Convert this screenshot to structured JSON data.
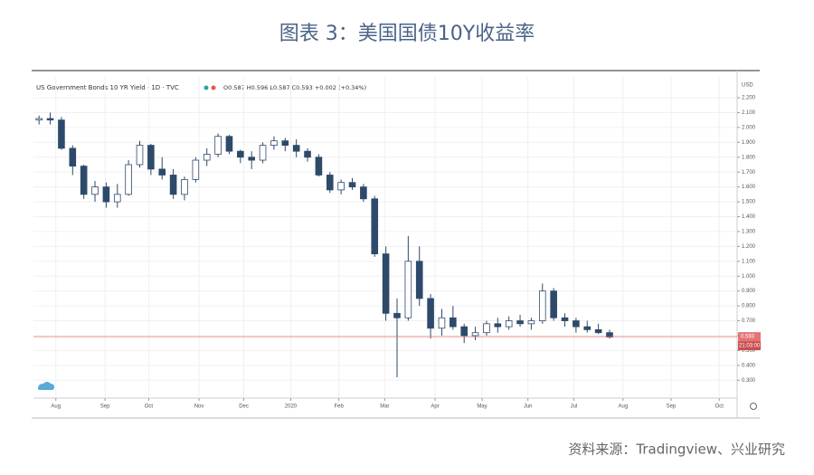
{
  "title": "图表 3：美国国债10Y收益率",
  "source": "资料来源：Tradingview、兴业研究",
  "chart_data": {
    "type": "candlestick",
    "header": "US Government Bonds 10 YR Yield · 1D · TVC",
    "ohlc_text": "O0.587 H0.596 L0.587 C0.593 +0.002 (+0.34%)",
    "currency": "USD",
    "up_color": "#2e4a6b",
    "down_color": "#2e4a6b",
    "grid": true,
    "x": [
      0.5,
      1.5,
      2.5,
      3.5,
      4.5,
      5.5,
      6.5,
      7.5,
      8.5,
      9.5,
      10.5,
      11.5,
      12.5,
      13.5,
      14.5,
      15.5,
      16.5,
      17.5,
      18.5,
      19.5,
      20.5,
      21.5,
      22.5,
      23.5,
      24.5,
      25.5,
      26.5,
      27.5,
      28.5,
      29.5,
      30.5,
      31.5,
      32.5,
      33.5,
      34.5,
      35.5,
      36.5,
      37.5,
      38.5,
      39.5,
      40.5,
      41.5,
      42.5,
      43.5,
      44.5,
      45.5,
      46.5,
      47.5,
      48.5,
      49.5,
      50.5,
      51.5
    ],
    "open": [
      2.05,
      2.06,
      2.05,
      1.86,
      1.74,
      1.55,
      1.6,
      1.5,
      1.55,
      1.75,
      1.88,
      1.72,
      1.68,
      1.55,
      1.65,
      1.78,
      1.82,
      1.94,
      1.84,
      1.8,
      1.78,
      1.88,
      1.91,
      1.88,
      1.84,
      1.8,
      1.68,
      1.58,
      1.63,
      1.6,
      1.52,
      1.15,
      0.75,
      0.72,
      1.1,
      0.85,
      0.65,
      0.72,
      0.66,
      0.6,
      0.62,
      0.68,
      0.66,
      0.7,
      0.68,
      0.7,
      0.9,
      0.72,
      0.7,
      0.66,
      0.64,
      0.62
    ],
    "high": [
      2.08,
      2.1,
      2.07,
      1.88,
      1.75,
      1.64,
      1.63,
      1.62,
      1.78,
      1.91,
      1.89,
      1.8,
      1.72,
      1.67,
      1.8,
      1.86,
      1.96,
      1.95,
      1.85,
      1.84,
      1.9,
      1.94,
      1.93,
      1.92,
      1.86,
      1.82,
      1.7,
      1.65,
      1.66,
      1.62,
      1.54,
      1.2,
      0.85,
      1.27,
      1.2,
      0.88,
      0.78,
      0.8,
      0.68,
      0.66,
      0.7,
      0.72,
      0.73,
      0.74,
      0.72,
      0.95,
      0.92,
      0.75,
      0.72,
      0.7,
      0.68,
      0.64
    ],
    "low": [
      2.02,
      2.02,
      1.85,
      1.68,
      1.52,
      1.5,
      1.46,
      1.46,
      1.54,
      1.73,
      1.68,
      1.65,
      1.52,
      1.51,
      1.63,
      1.74,
      1.8,
      1.82,
      1.76,
      1.72,
      1.76,
      1.85,
      1.84,
      1.8,
      1.77,
      1.67,
      1.56,
      1.55,
      1.58,
      1.5,
      1.13,
      0.7,
      0.32,
      0.7,
      0.8,
      0.58,
      0.6,
      0.64,
      0.55,
      0.57,
      0.6,
      0.62,
      0.64,
      0.66,
      0.64,
      0.68,
      0.7,
      0.66,
      0.62,
      0.62,
      0.61,
      0.58
    ],
    "close": [
      2.06,
      2.05,
      1.86,
      1.74,
      1.55,
      1.6,
      1.5,
      1.55,
      1.75,
      1.88,
      1.72,
      1.68,
      1.55,
      1.65,
      1.78,
      1.82,
      1.94,
      1.84,
      1.8,
      1.78,
      1.88,
      1.91,
      1.88,
      1.84,
      1.8,
      1.68,
      1.58,
      1.63,
      1.6,
      1.52,
      1.15,
      0.75,
      0.72,
      1.1,
      0.85,
      0.65,
      0.72,
      0.66,
      0.6,
      0.62,
      0.68,
      0.66,
      0.7,
      0.68,
      0.7,
      0.9,
      0.72,
      0.7,
      0.66,
      0.64,
      0.62,
      0.59
    ],
    "xlim": [
      0,
      62.9
    ],
    "xticks": [
      {
        "value": 2.0,
        "label": "Aug"
      },
      {
        "value": 6.4,
        "label": "Sep"
      },
      {
        "value": 10.3,
        "label": "Oct"
      },
      {
        "value": 14.8,
        "label": "Nov"
      },
      {
        "value": 18.8,
        "label": "Dec"
      },
      {
        "value": 23.0,
        "label": "2020"
      },
      {
        "value": 27.3,
        "label": "Feb"
      },
      {
        "value": 31.4,
        "label": "Mar"
      },
      {
        "value": 35.9,
        "label": "Apr"
      },
      {
        "value": 40.1,
        "label": "May"
      },
      {
        "value": 44.2,
        "label": "Jun"
      },
      {
        "value": 48.3,
        "label": "Jul"
      },
      {
        "value": 52.7,
        "label": "Aug"
      },
      {
        "value": 57.0,
        "label": "Sep"
      },
      {
        "value": 61.3,
        "label": "Oct"
      }
    ],
    "ylim": [
      0.18,
      2.34
    ],
    "yticks": [
      {
        "value": 0.3,
        "label": "0.300"
      },
      {
        "value": 0.4,
        "label": "0.400"
      },
      {
        "value": 0.5,
        "label": "0.500"
      },
      {
        "value": 0.6,
        "label": "0.600"
      },
      {
        "value": 0.7,
        "label": "0.700"
      },
      {
        "value": 0.8,
        "label": "0.800"
      },
      {
        "value": 0.9,
        "label": "0.900"
      },
      {
        "value": 1.0,
        "label": "1.000"
      },
      {
        "value": 1.1,
        "label": "1.100"
      },
      {
        "value": 1.2,
        "label": "1.200"
      },
      {
        "value": 1.3,
        "label": "1.300"
      },
      {
        "value": 1.4,
        "label": "1.400"
      },
      {
        "value": 1.5,
        "label": "1.500"
      },
      {
        "value": 1.6,
        "label": "1.600"
      },
      {
        "value": 1.7,
        "label": "1.700"
      },
      {
        "value": 1.8,
        "label": "1.800"
      },
      {
        "value": 1.9,
        "label": "1.900"
      },
      {
        "value": 2.0,
        "label": "2.000"
      },
      {
        "value": 2.1,
        "label": "2.100"
      },
      {
        "value": 2.2,
        "label": "2.200"
      }
    ],
    "price_line": {
      "value": 0.593,
      "color": "#e57373",
      "time": "21:03:00"
    }
  }
}
